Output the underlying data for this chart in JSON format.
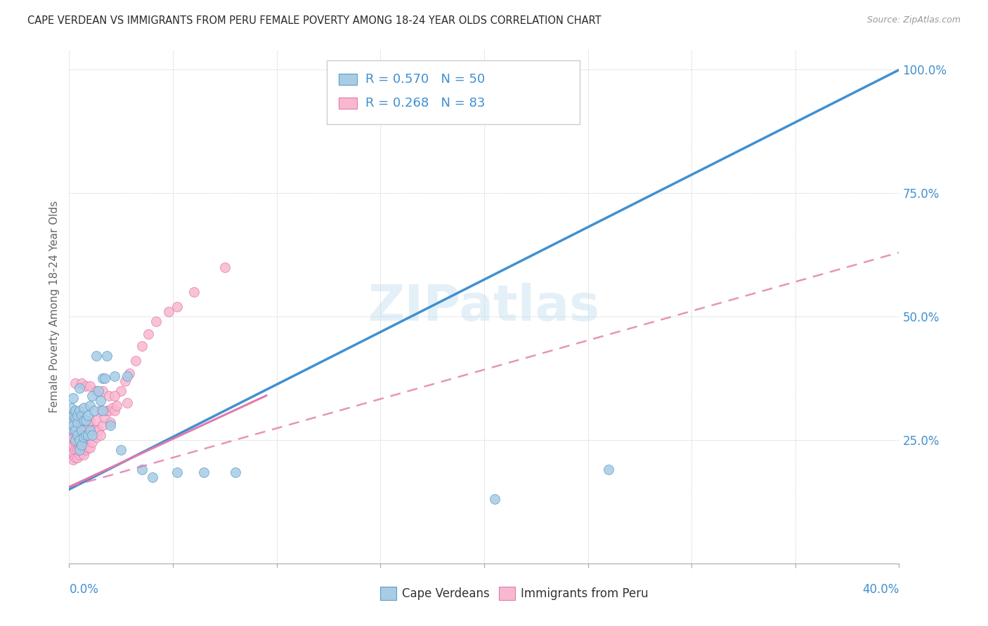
{
  "title": "CAPE VERDEAN VS IMMIGRANTS FROM PERU FEMALE POVERTY AMONG 18-24 YEAR OLDS CORRELATION CHART",
  "source": "Source: ZipAtlas.com",
  "ylabel": "Female Poverty Among 18-24 Year Olds",
  "blue_label": "Cape Verdeans",
  "pink_label": "Immigrants from Peru",
  "blue_R": 0.57,
  "blue_N": 50,
  "pink_R": 0.268,
  "pink_N": 83,
  "blue_color": "#a8cce4",
  "pink_color": "#f9b8d0",
  "blue_edge_color": "#5b9dc9",
  "pink_edge_color": "#e07aaa",
  "blue_line_color": "#4090d0",
  "pink_line_color": "#e07aaa",
  "watermark": "ZIPatlas",
  "blue_scatter_x": [
    0.001,
    0.001,
    0.002,
    0.002,
    0.002,
    0.002,
    0.003,
    0.003,
    0.003,
    0.003,
    0.004,
    0.004,
    0.004,
    0.005,
    0.005,
    0.005,
    0.005,
    0.006,
    0.006,
    0.006,
    0.007,
    0.007,
    0.007,
    0.008,
    0.008,
    0.009,
    0.009,
    0.01,
    0.01,
    0.011,
    0.011,
    0.012,
    0.013,
    0.014,
    0.015,
    0.016,
    0.016,
    0.017,
    0.018,
    0.02,
    0.022,
    0.025,
    0.028,
    0.035,
    0.04,
    0.052,
    0.065,
    0.08,
    0.205,
    0.26
  ],
  "blue_scatter_y": [
    0.315,
    0.295,
    0.27,
    0.28,
    0.3,
    0.335,
    0.25,
    0.27,
    0.295,
    0.31,
    0.26,
    0.285,
    0.3,
    0.23,
    0.25,
    0.31,
    0.355,
    0.24,
    0.27,
    0.3,
    0.255,
    0.29,
    0.315,
    0.26,
    0.29,
    0.26,
    0.3,
    0.27,
    0.32,
    0.26,
    0.34,
    0.31,
    0.42,
    0.35,
    0.33,
    0.31,
    0.375,
    0.375,
    0.42,
    0.28,
    0.38,
    0.23,
    0.38,
    0.19,
    0.175,
    0.185,
    0.185,
    0.185,
    0.13,
    0.19
  ],
  "pink_scatter_x": [
    0.0005,
    0.001,
    0.001,
    0.001,
    0.001,
    0.001,
    0.002,
    0.002,
    0.002,
    0.002,
    0.002,
    0.002,
    0.002,
    0.003,
    0.003,
    0.003,
    0.003,
    0.003,
    0.003,
    0.004,
    0.004,
    0.004,
    0.004,
    0.004,
    0.005,
    0.005,
    0.005,
    0.005,
    0.005,
    0.006,
    0.006,
    0.006,
    0.006,
    0.006,
    0.007,
    0.007,
    0.007,
    0.007,
    0.008,
    0.008,
    0.008,
    0.009,
    0.009,
    0.009,
    0.01,
    0.01,
    0.01,
    0.011,
    0.011,
    0.012,
    0.013,
    0.013,
    0.014,
    0.015,
    0.015,
    0.016,
    0.017,
    0.018,
    0.019,
    0.02,
    0.021,
    0.022,
    0.023,
    0.025,
    0.027,
    0.029,
    0.032,
    0.035,
    0.038,
    0.042,
    0.048,
    0.052,
    0.06,
    0.075,
    0.003,
    0.006,
    0.008,
    0.01,
    0.013,
    0.016,
    0.019,
    0.022,
    0.028
  ],
  "pink_scatter_y": [
    0.22,
    0.23,
    0.25,
    0.265,
    0.28,
    0.295,
    0.21,
    0.225,
    0.24,
    0.255,
    0.27,
    0.285,
    0.305,
    0.215,
    0.23,
    0.245,
    0.26,
    0.275,
    0.295,
    0.215,
    0.23,
    0.245,
    0.265,
    0.285,
    0.22,
    0.235,
    0.25,
    0.265,
    0.29,
    0.225,
    0.24,
    0.255,
    0.275,
    0.295,
    0.22,
    0.24,
    0.26,
    0.285,
    0.23,
    0.25,
    0.275,
    0.235,
    0.255,
    0.28,
    0.235,
    0.26,
    0.29,
    0.245,
    0.27,
    0.27,
    0.255,
    0.29,
    0.27,
    0.26,
    0.31,
    0.28,
    0.295,
    0.31,
    0.31,
    0.285,
    0.315,
    0.31,
    0.32,
    0.35,
    0.37,
    0.385,
    0.41,
    0.44,
    0.465,
    0.49,
    0.51,
    0.52,
    0.55,
    0.6,
    0.365,
    0.365,
    0.36,
    0.36,
    0.35,
    0.35,
    0.34,
    0.34,
    0.325
  ],
  "blue_line_x": [
    0.0,
    0.4
  ],
  "blue_line_y": [
    0.15,
    1.0
  ],
  "pink_solid_line_x": [
    0.0,
    0.095
  ],
  "pink_solid_line_y": [
    0.155,
    0.34
  ],
  "pink_dash_line_x": [
    0.0,
    0.4
  ],
  "pink_dash_line_y": [
    0.155,
    0.63
  ],
  "xmin": 0.0,
  "xmax": 0.4,
  "ymin": 0.0,
  "ymax": 1.04
}
